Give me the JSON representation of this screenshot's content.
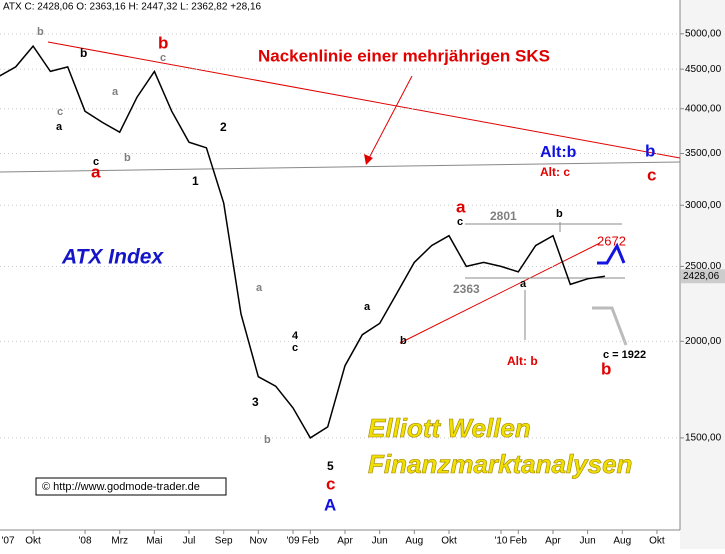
{
  "chart_data": {
    "type": "line",
    "header": "ATX C: 2428,06 O: 2363,16 H: 2447,32 L: 2362,82 +28,16",
    "title": "ATX Index",
    "categories": [
      "'07",
      null,
      "Okt",
      null,
      null,
      "'08",
      null,
      "Mrz",
      null,
      "Mai",
      null,
      "Jul",
      null,
      "Sep",
      null,
      "Nov",
      null,
      "'09",
      "Feb",
      null,
      "Apr",
      null,
      "Jun",
      null,
      "Aug",
      null,
      "Okt",
      null,
      null,
      "'10",
      "Feb",
      null,
      "Apr",
      null,
      "Jun",
      null,
      "Aug",
      null,
      "Okt"
    ],
    "series": [
      {
        "name": "ATX",
        "color": "#000000",
        "values": [
          4400,
          4530,
          4820,
          4470,
          4530,
          3970,
          3840,
          3730,
          4140,
          4470,
          3970,
          3620,
          3560,
          3020,
          2170,
          1800,
          1750,
          1640,
          1500,
          1550,
          1860,
          2040,
          2110,
          2310,
          2530,
          2660,
          2740,
          2500,
          2530,
          2500,
          2460,
          2660,
          2740,
          2370,
          2410,
          2428,
          null,
          null,
          null
        ]
      }
    ],
    "log_y": true,
    "ylim": [
      1140,
      5530
    ],
    "yticks": [
      {
        "value": 1500,
        "label": "1500,00"
      },
      {
        "value": 2000,
        "label": "2000,00"
      },
      {
        "value": 2500,
        "label": "2500,00"
      },
      {
        "value": 3000,
        "label": "3000,00"
      },
      {
        "value": 3500,
        "label": "3500,00"
      },
      {
        "value": 4000,
        "label": "4000,00"
      },
      {
        "value": 4500,
        "label": "4500,00"
      },
      {
        "value": 5000,
        "label": "5000,00"
      }
    ],
    "grid": true,
    "last_price": {
      "value": 2428.06,
      "label": "2428,06"
    },
    "annotations": [
      {
        "text": "Nackenlinie einer mehrjährigen SKS",
        "color": "#e00000"
      },
      {
        "text": "Elliott Wellen",
        "color": "#f0e000"
      },
      {
        "text": "Finanzmarktanalysen",
        "color": "#f0e000"
      },
      {
        "text": "© http://www.godmode-trader.de",
        "color": "#000000"
      },
      {
        "text": "Alt:b",
        "color": "#1010e0"
      },
      {
        "text": "Alt: c",
        "color": "#e00000"
      },
      {
        "text": "2801",
        "color": "#808080"
      },
      {
        "text": "2363",
        "color": "#808080"
      },
      {
        "text": "2672",
        "color": "#e00000"
      },
      {
        "text": "Alt: b",
        "color": "#e00000"
      },
      {
        "text": "c = 1922",
        "color": "#000000"
      },
      {
        "text": "b",
        "color": "#808080"
      },
      {
        "text": "b",
        "color": "#000000"
      },
      {
        "text": "c",
        "color": "#808080"
      },
      {
        "text": "a",
        "color": "#000000"
      },
      {
        "text": "c",
        "color": "#000000"
      },
      {
        "text": "a",
        "color": "#e00000"
      },
      {
        "text": "b",
        "color": "#e00000"
      },
      {
        "text": "c",
        "color": "#808080"
      },
      {
        "text": "a",
        "color": "#808080"
      },
      {
        "text": "b",
        "color": "#808080"
      },
      {
        "text": "2",
        "color": "#000000"
      },
      {
        "text": "1",
        "color": "#000000"
      },
      {
        "text": "a",
        "color": "#808080"
      },
      {
        "text": "4",
        "color": "#000000"
      },
      {
        "text": "c",
        "color": "#000000"
      },
      {
        "text": "3",
        "color": "#000000"
      },
      {
        "text": "b",
        "color": "#808080"
      },
      {
        "text": "5",
        "color": "#000000"
      },
      {
        "text": "c",
        "color": "#e00000"
      },
      {
        "text": "A",
        "color": "#1010e0"
      },
      {
        "text": "a",
        "color": "#000000"
      },
      {
        "text": "b",
        "color": "#000000"
      },
      {
        "text": "a",
        "color": "#e00000"
      },
      {
        "text": "c",
        "color": "#000000"
      },
      {
        "text": "b",
        "color": "#000000"
      },
      {
        "text": "a",
        "color": "#000000"
      },
      {
        "text": "b",
        "color": "#1010e0"
      },
      {
        "text": "c",
        "color": "#e00000"
      },
      {
        "text": "b",
        "color": "#e00000"
      }
    ]
  }
}
